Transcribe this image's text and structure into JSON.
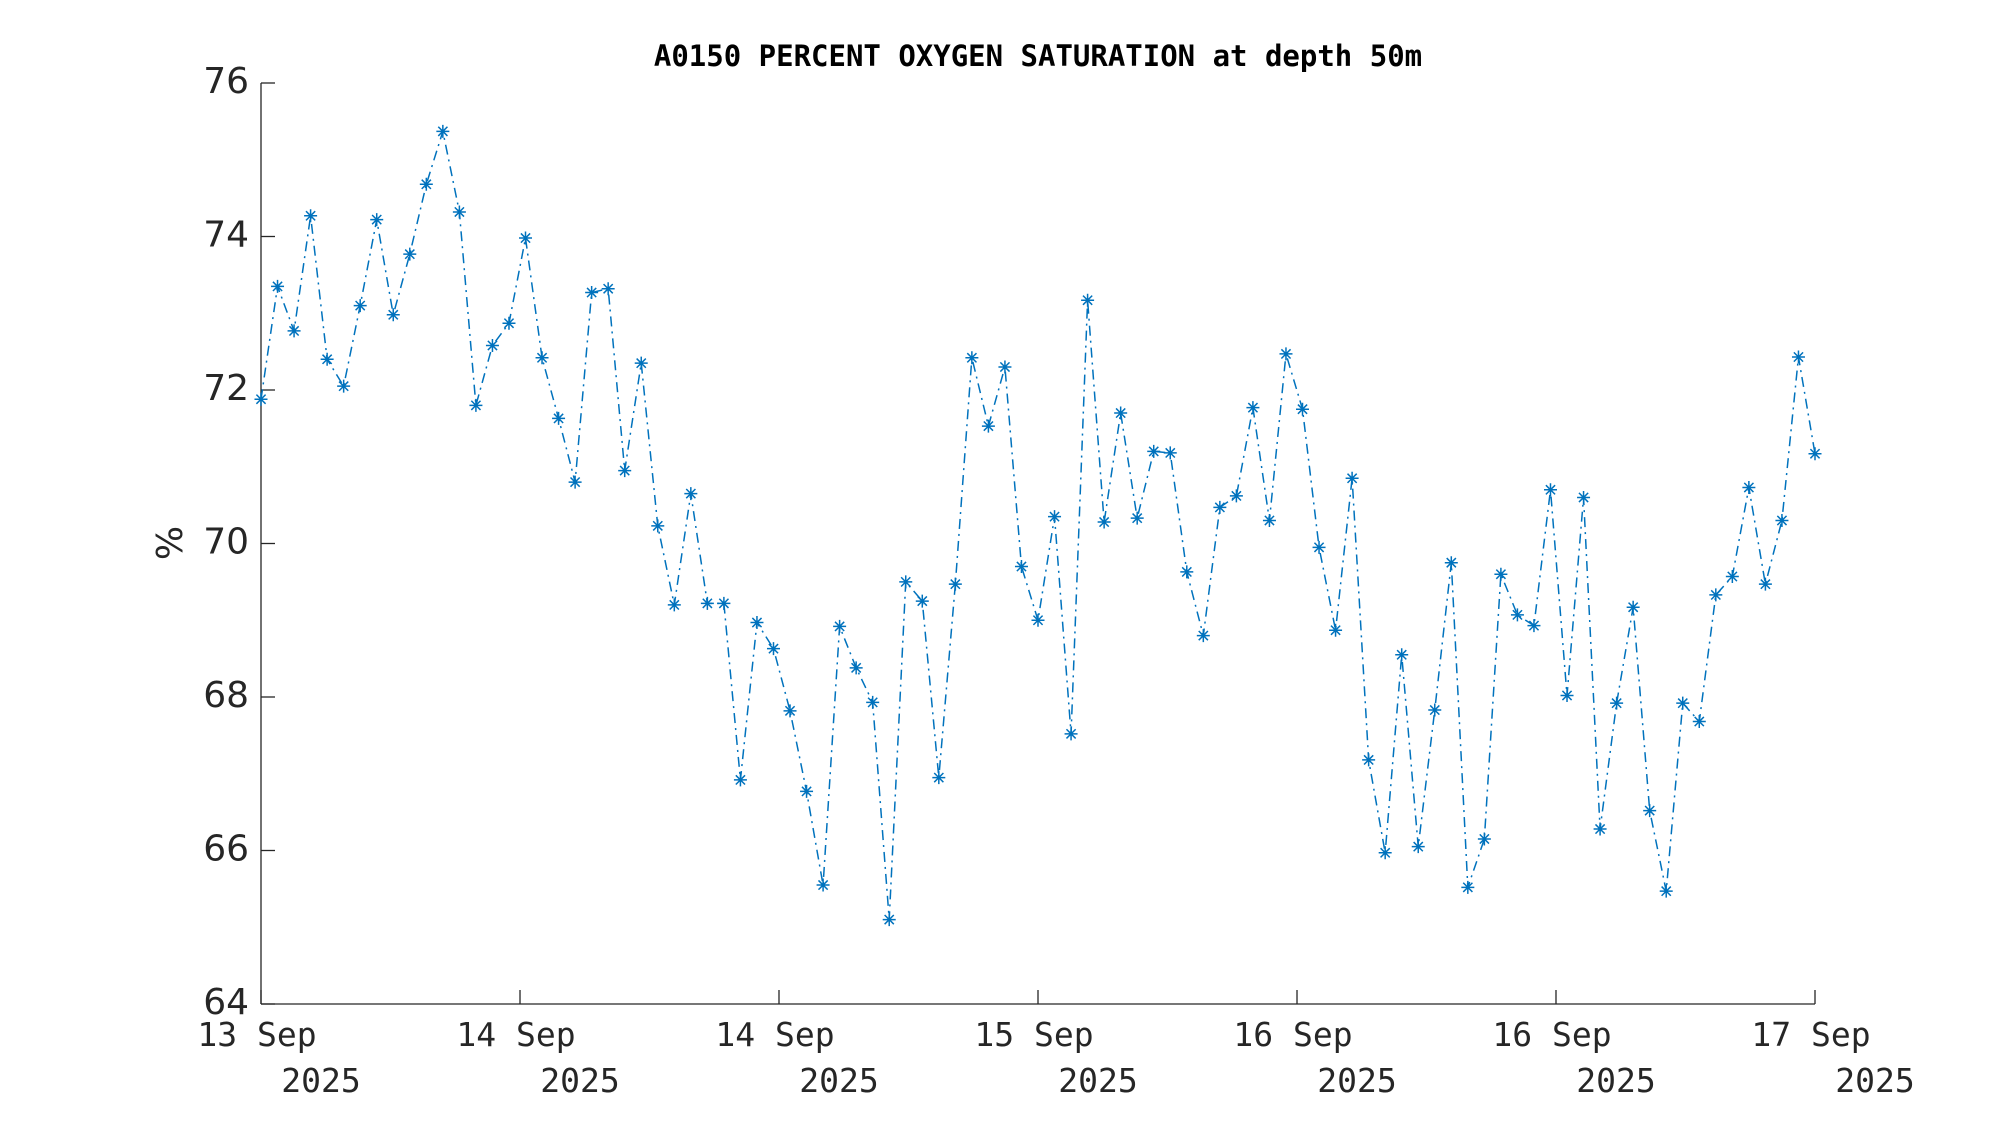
{
  "chart_data": {
    "type": "line",
    "title": "A0150 PERCENT OXYGEN SATURATION at depth 50m",
    "y_label": "%",
    "series": [
      {
        "color": "#0072bd",
        "line_style": "dash-dot",
        "marker": "asterisk",
        "values": [
          71.88,
          73.35,
          72.77,
          74.27,
          72.4,
          72.05,
          73.1,
          74.22,
          72.98,
          73.77,
          74.68,
          75.37,
          74.32,
          71.8,
          72.58,
          72.87,
          73.98,
          72.42,
          71.63,
          70.8,
          73.27,
          73.32,
          70.95,
          72.35,
          70.23,
          69.2,
          70.65,
          69.22,
          69.22,
          66.92,
          68.97,
          68.63,
          67.82,
          66.77,
          65.55,
          68.92,
          68.38,
          67.93,
          65.1,
          69.5,
          69.25,
          66.95,
          69.47,
          72.42,
          71.53,
          72.3,
          69.7,
          69.0,
          70.35,
          67.52,
          73.17,
          70.28,
          71.7,
          70.33,
          71.2,
          71.18,
          69.63,
          68.8,
          70.47,
          70.62,
          71.77,
          70.3,
          72.47,
          71.75,
          69.95,
          68.87,
          70.85,
          67.18,
          65.97,
          68.55,
          66.05,
          67.83,
          69.75,
          65.52,
          66.15,
          69.6,
          69.07,
          68.93,
          70.7,
          68.02,
          70.6,
          66.28,
          67.92,
          69.17,
          66.52,
          65.47,
          67.92,
          67.68,
          69.33,
          69.57,
          70.73,
          69.47,
          70.3,
          72.43,
          71.17
        ]
      }
    ],
    "xlim": [
      0,
      94
    ],
    "xticks": [
      {
        "value": 0,
        "label": "13 Sep 2025"
      },
      {
        "value": 15.667,
        "label": "14 Sep 2025"
      },
      {
        "value": 31.333,
        "label": "14 Sep 2025"
      },
      {
        "value": 47,
        "label": "15 Sep 2025"
      },
      {
        "value": 62.667,
        "label": "16 Sep 2025"
      },
      {
        "value": 78.333,
        "label": "16 Sep 2025"
      },
      {
        "value": 94,
        "label": "17 Sep 2025"
      }
    ],
    "ylim": [
      64,
      76
    ],
    "yticks": [
      64,
      66,
      68,
      70,
      72,
      74,
      76
    ],
    "grid": false
  }
}
